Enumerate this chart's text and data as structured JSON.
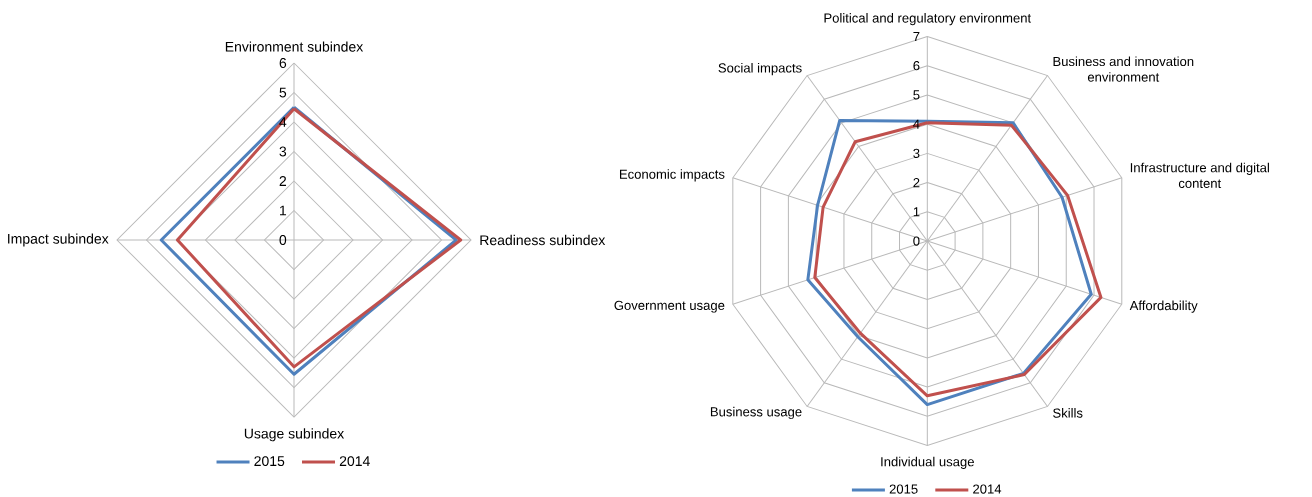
{
  "chart_data": [
    {
      "type": "radar",
      "categories": [
        "Environment subindex",
        "Readiness subindex",
        "Usage subindex",
        "Impact subindex"
      ],
      "series": [
        {
          "name": "2015",
          "color": "#4f81bd",
          "values": [
            4.5,
            5.5,
            4.55,
            4.5
          ]
        },
        {
          "name": "2014",
          "color": "#c0504d",
          "values": [
            4.45,
            5.65,
            4.3,
            3.95
          ]
        }
      ],
      "ylim": [
        0,
        6
      ],
      "yticks": [
        0,
        1,
        2,
        3,
        4,
        5,
        6
      ],
      "grid": true,
      "legend": "bottom"
    },
    {
      "type": "radar",
      "categories": [
        "Political and regulatory environment",
        "Business and innovation environment",
        "Infrastructure and digital content",
        "Affordability",
        "Skills",
        "Individual usage",
        "Business usage",
        "Government usage",
        "Economic impacts",
        "Social impacts"
      ],
      "series": [
        {
          "name": "2015",
          "color": "#4f81bd",
          "values": [
            4.1,
            5.0,
            4.85,
            5.9,
            5.6,
            5.6,
            4.05,
            4.3,
            3.95,
            5.1
          ]
        },
        {
          "name": "2014",
          "color": "#c0504d",
          "values": [
            4.05,
            4.9,
            5.05,
            6.25,
            5.65,
            5.3,
            3.9,
            4.05,
            3.75,
            4.2
          ]
        }
      ],
      "ylim": [
        0,
        7
      ],
      "yticks": [
        0,
        1,
        2,
        3,
        4,
        5,
        6,
        7
      ],
      "grid": true,
      "legend": "bottom"
    }
  ]
}
